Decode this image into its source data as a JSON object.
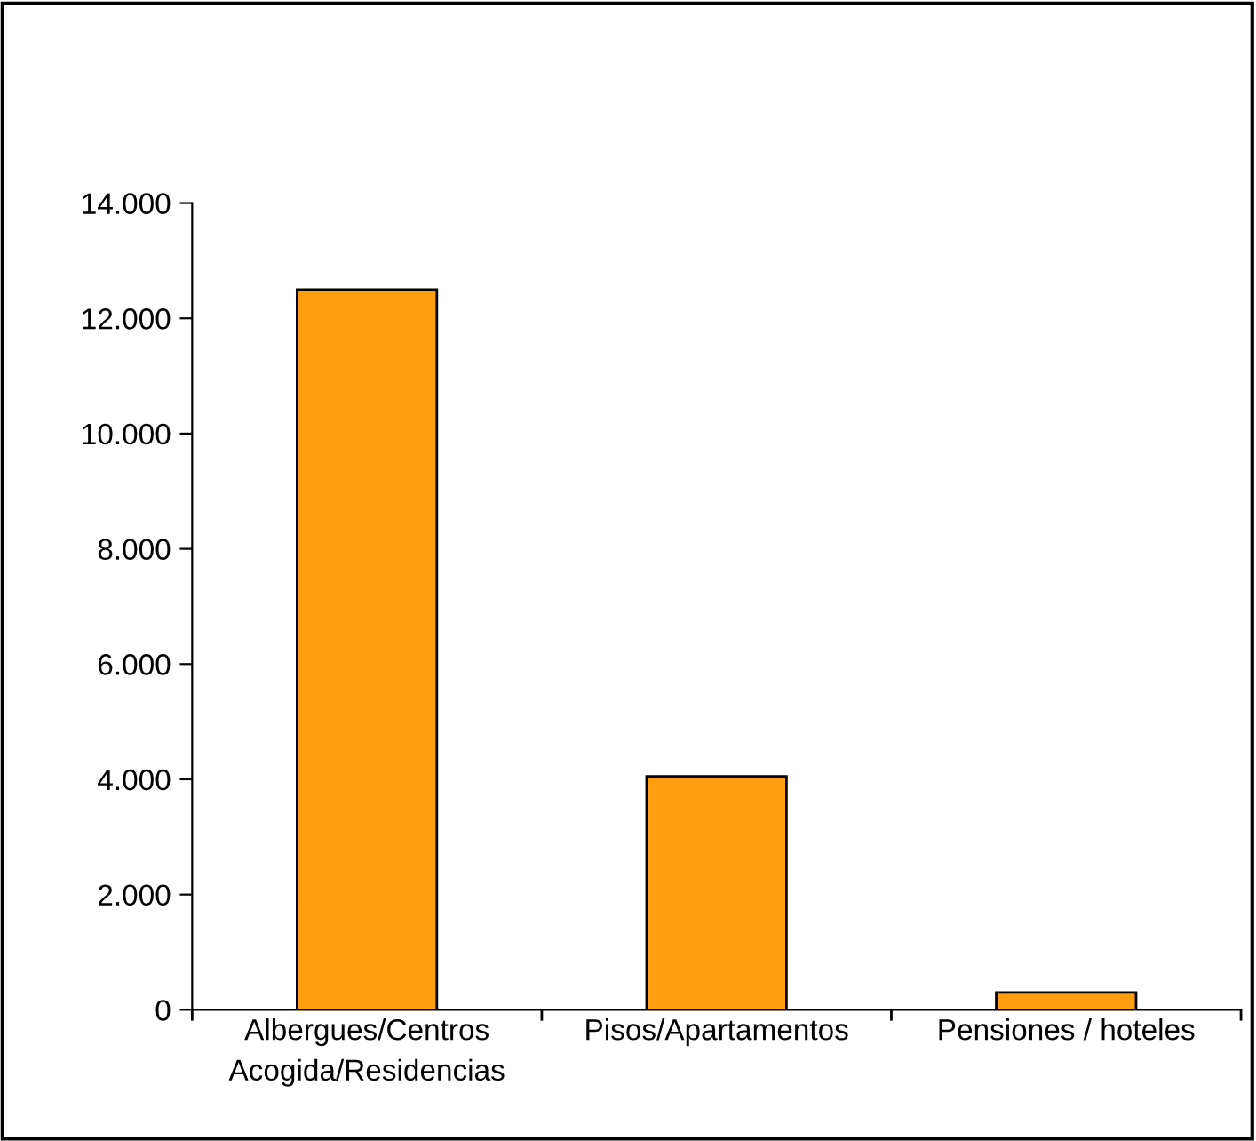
{
  "chart_data": {
    "type": "bar",
    "categories": [
      "Albergues/Centros\nAcogida/Residencias",
      "Pisos/Apartamentos",
      "Pensiones / hoteles"
    ],
    "values": [
      12500,
      4050,
      300
    ],
    "color": "#ff9e0e",
    "ylim": [
      0,
      14000
    ],
    "yticks": [
      0,
      {
        "value": 2000,
        "label": "2.000"
      },
      {
        "value": 4000,
        "label": "4.000"
      },
      {
        "value": 6000,
        "label": "6.000"
      },
      {
        "value": 8000,
        "label": "8.000"
      },
      {
        "value": 10000,
        "label": "10.000"
      },
      {
        "value": 12000,
        "label": "12.000"
      },
      {
        "value": 14000,
        "label": "14.000"
      }
    ],
    "grid": false,
    "legend": false
  }
}
